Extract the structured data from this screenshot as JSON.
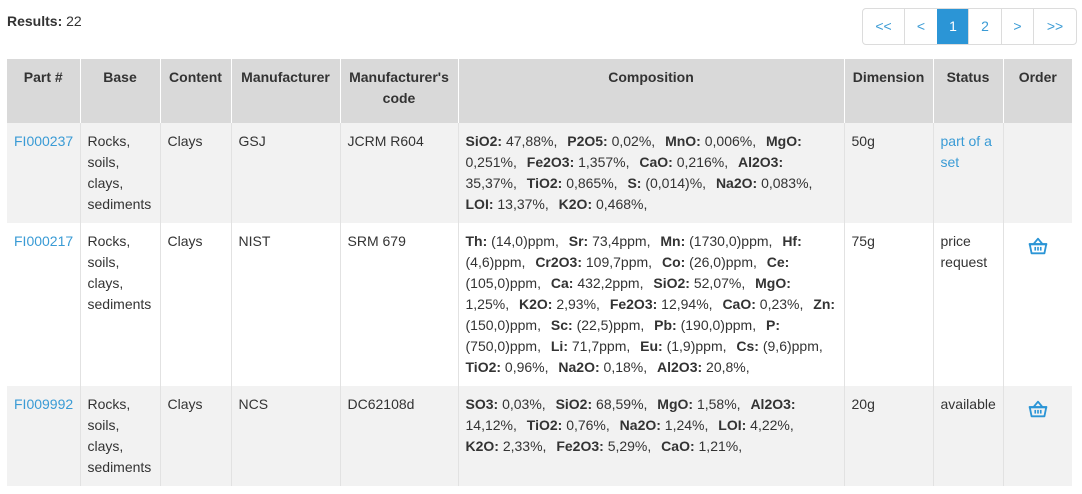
{
  "results": {
    "label": "Results:",
    "count": "22"
  },
  "pagination": {
    "items": [
      {
        "label": "<<",
        "active": false,
        "width": 41
      },
      {
        "label": "<",
        "active": false,
        "width": 32
      },
      {
        "label": "1",
        "active": true,
        "width": 30
      },
      {
        "label": "2",
        "active": false,
        "width": 32
      },
      {
        "label": ">",
        "active": false,
        "width": 31
      },
      {
        "label": ">>",
        "active": false,
        "width": 42
      }
    ]
  },
  "table": {
    "headers": {
      "part": "Part #",
      "base": "Base",
      "content": "Content",
      "manufacturer": "Manufacturer",
      "mcode": "Manufacturer's code",
      "composition": "Composition",
      "dimension": "Dimension",
      "status": "Status",
      "order": "Order"
    },
    "rows": [
      {
        "part": "FI000237",
        "base": "Rocks, soils, clays, sediments",
        "content": "Clays",
        "manufacturer": "GSJ",
        "mcode": "JCRM R604",
        "composition": [
          {
            "el": "SiO2:",
            "val": "47,88%,"
          },
          {
            "el": "P2O5:",
            "val": "0,02%,"
          },
          {
            "el": "MnO:",
            "val": "0,006%,"
          },
          {
            "el": "MgO:",
            "val": "0,251%,"
          },
          {
            "el": "Fe2O3:",
            "val": "1,357%,"
          },
          {
            "el": "CaO:",
            "val": "0,216%,"
          },
          {
            "el": "Al2O3:",
            "val": "35,37%,"
          },
          {
            "el": "TiO2:",
            "val": "0,865%,"
          },
          {
            "el": "S:",
            "val": "(0,014)%,"
          },
          {
            "el": "Na2O:",
            "val": "0,083%,"
          },
          {
            "el": "LOI:",
            "val": "13,37%,"
          },
          {
            "el": "K2O:",
            "val": "0,468%,"
          }
        ],
        "dimension": "50g",
        "status": "part of a set",
        "status_link": true,
        "orderable": false
      },
      {
        "part": "FI000217",
        "base": "Rocks, soils, clays, sediments",
        "content": "Clays",
        "manufacturer": "NIST",
        "mcode": "SRM 679",
        "composition": [
          {
            "el": "Th:",
            "val": "(14,0)ppm,"
          },
          {
            "el": "Sr:",
            "val": "73,4ppm,"
          },
          {
            "el": "Mn:",
            "val": "(1730,0)ppm,"
          },
          {
            "el": "Hf:",
            "val": "(4,6)ppm,"
          },
          {
            "el": "Cr2O3:",
            "val": "109,7ppm,"
          },
          {
            "el": "Co:",
            "val": "(26,0)ppm,"
          },
          {
            "el": "Ce:",
            "val": "(105,0)ppm,"
          },
          {
            "el": "Ca:",
            "val": "432,2ppm,"
          },
          {
            "el": "SiO2:",
            "val": "52,07%,"
          },
          {
            "el": "MgO:",
            "val": "1,25%,"
          },
          {
            "el": "K2O:",
            "val": "2,93%,"
          },
          {
            "el": "Fe2O3:",
            "val": "12,94%,"
          },
          {
            "el": "CaO:",
            "val": "0,23%,"
          },
          {
            "el": "Zn:",
            "val": "(150,0)ppm,"
          },
          {
            "el": "Sc:",
            "val": "(22,5)ppm,"
          },
          {
            "el": "Pb:",
            "val": "(190,0)ppm,"
          },
          {
            "el": "P:",
            "val": "(750,0)ppm,"
          },
          {
            "el": "Li:",
            "val": "71,7ppm,"
          },
          {
            "el": "Eu:",
            "val": "(1,9)ppm,"
          },
          {
            "el": "Cs:",
            "val": "(9,6)ppm,"
          },
          {
            "el": "TiO2:",
            "val": "0,96%,"
          },
          {
            "el": "Na2O:",
            "val": "0,18%,"
          },
          {
            "el": "Al2O3:",
            "val": "20,8%,"
          }
        ],
        "dimension": "75g",
        "status": "price request",
        "status_link": false,
        "orderable": true
      },
      {
        "part": "FI009992",
        "base": "Rocks, soils, clays, sediments",
        "content": "Clays",
        "manufacturer": "NCS",
        "mcode": "DC62108d",
        "composition": [
          {
            "el": "SO3:",
            "val": "0,03%,"
          },
          {
            "el": "SiO2:",
            "val": "68,59%,"
          },
          {
            "el": "MgO:",
            "val": "1,58%,"
          },
          {
            "el": "Al2O3:",
            "val": "14,12%,"
          },
          {
            "el": "TiO2:",
            "val": "0,76%,"
          },
          {
            "el": "Na2O:",
            "val": "1,24%,"
          },
          {
            "el": "LOI:",
            "val": "4,22%,"
          },
          {
            "el": "K2O:",
            "val": "2,33%,"
          },
          {
            "el": "Fe2O3:",
            "val": "5,29%,"
          },
          {
            "el": "CaO:",
            "val": "1,21%,"
          }
        ],
        "dimension": "20g",
        "status": "available",
        "status_link": false,
        "orderable": true
      }
    ]
  },
  "icons": {
    "order": "basket-icon"
  },
  "colors": {
    "link": "#3a9bd5",
    "active_page": "#2b95d6",
    "header_bg": "#d9d9d9",
    "row_alt": "#f2f2f2"
  }
}
